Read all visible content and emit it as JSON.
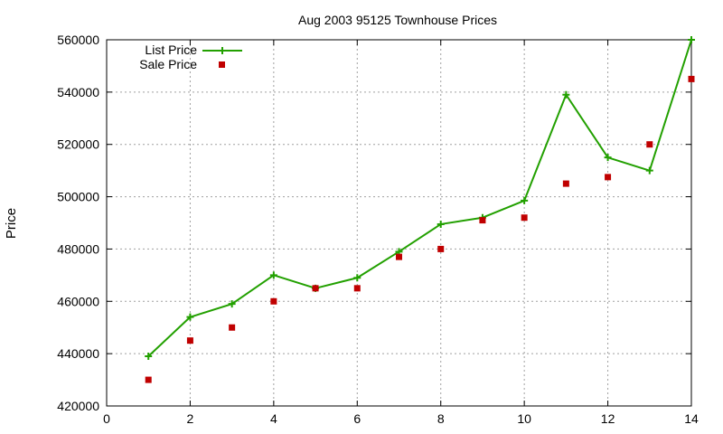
{
  "chart_data": {
    "type": "line",
    "title": "Aug 2003 95125 Townhouse Prices",
    "xlabel": "",
    "ylabel": "Price",
    "xlim": [
      0,
      14
    ],
    "ylim": [
      420000,
      560000
    ],
    "x_ticks": [
      0,
      2,
      4,
      6,
      8,
      10,
      12,
      14
    ],
    "y_ticks": [
      420000,
      440000,
      460000,
      480000,
      500000,
      520000,
      540000,
      560000
    ],
    "grid": true,
    "legend_position": "top-left",
    "series": [
      {
        "name": "List Price",
        "style": "lines+points",
        "marker": "plus",
        "color": "#22a000",
        "x": [
          1,
          2,
          3,
          4,
          5,
          6,
          7,
          8,
          9,
          10,
          11,
          12,
          13,
          14
        ],
        "y": [
          439000,
          454000,
          459000,
          470000,
          465000,
          469000,
          479000,
          489500,
          492000,
          498500,
          539000,
          515000,
          510000,
          560000
        ]
      },
      {
        "name": "Sale Price",
        "style": "points",
        "marker": "square",
        "color": "#c00000",
        "x": [
          1,
          2,
          3,
          4,
          5,
          6,
          7,
          8,
          9,
          10,
          11,
          12,
          13,
          14
        ],
        "y": [
          430000,
          445000,
          450000,
          460000,
          465000,
          465000,
          477000,
          480000,
          491000,
          492000,
          505000,
          507500,
          520000,
          545000
        ]
      }
    ]
  }
}
